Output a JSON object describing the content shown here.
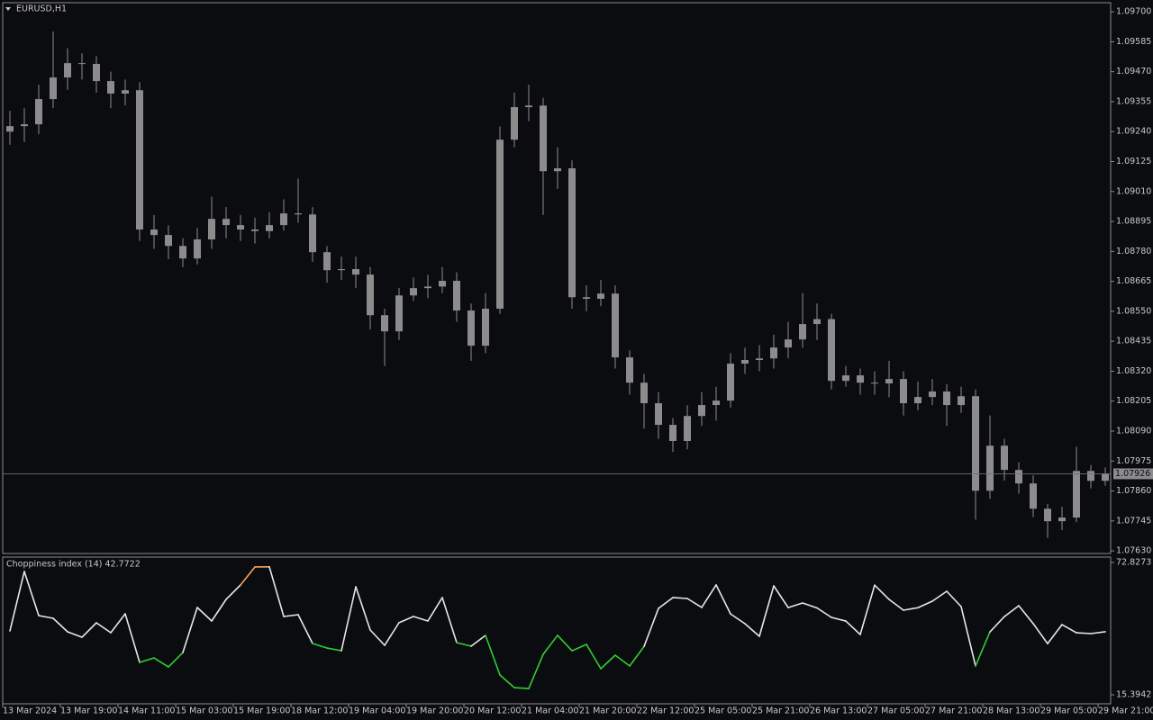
{
  "chart_data": [
    {
      "type": "candlestick",
      "title": "EURUSD,H1",
      "color": "#8c8c8c",
      "background": "#0b0c10",
      "categories": [
        "13 Mar 2024",
        null,
        null,
        null,
        "13 Mar 19:00",
        null,
        null,
        null,
        "14 Mar 11:00",
        null,
        null,
        null,
        "15 Mar 03:00",
        null,
        null,
        null,
        "15 Mar 19:00",
        null,
        null,
        null,
        "18 Mar 12:00",
        null,
        null,
        null,
        "19 Mar 04:00",
        null,
        null,
        null,
        "19 Mar 20:00",
        null,
        null,
        null,
        "20 Mar 12:00",
        null,
        null,
        null,
        "21 Mar 04:00",
        null,
        null,
        null,
        "21 Mar 20:00",
        null,
        null,
        null,
        "22 Mar 12:00",
        null,
        null,
        null,
        "25 Mar 05:00",
        null,
        null,
        null,
        "25 Mar 21:00",
        null,
        null,
        null,
        "26 Mar 13:00",
        null,
        null,
        null,
        "27 Mar 05:00",
        null,
        null,
        null,
        "27 Mar 21:00",
        null,
        null,
        null,
        "28 Mar 13:00",
        null,
        null,
        null,
        "29 Mar 05:00",
        null,
        null,
        null,
        "29 Mar 21:00"
      ],
      "open": [
        1.0924,
        1.09261,
        1.09268,
        1.09365,
        1.09448,
        1.09503,
        1.095,
        1.09434,
        1.09386,
        1.09399,
        1.08864,
        1.08843,
        1.08801,
        1.08753,
        1.08826,
        1.08905,
        1.08881,
        1.08864,
        1.08858,
        1.08881,
        1.08926,
        1.08922,
        1.08777,
        1.08708,
        1.08712,
        1.08691,
        1.08535,
        1.08473,
        1.08611,
        1.08639,
        1.08645,
        1.08667,
        1.08553,
        1.08418,
        1.0856,
        1.09209,
        1.09334,
        1.0934,
        1.09088,
        1.09099,
        1.08604,
        1.08598,
        1.08618,
        1.08373,
        1.08276,
        1.08197,
        1.08114,
        1.08052,
        1.08148,
        1.0819,
        1.08207,
        1.08349,
        1.08363,
        1.08369,
        1.08411,
        1.08442,
        1.08501,
        1.0852,
        1.08283,
        1.08304,
        1.08276,
        1.08273,
        1.0829,
        1.08197,
        1.08221,
        1.08242,
        1.0819,
        1.08224,
        1.07861,
        1.08034,
        1.07941,
        1.07889,
        1.07792,
        1.07744,
        1.07758,
        1.07937,
        1.07899
      ],
      "high": [
        1.0932,
        1.0933,
        1.0942,
        1.09624,
        1.0956,
        1.0954,
        1.0953,
        1.0947,
        1.0944,
        1.0943,
        1.0892,
        1.0888,
        1.0883,
        1.0887,
        1.0899,
        1.0895,
        1.0892,
        1.0891,
        1.0893,
        1.0898,
        1.0906,
        1.0895,
        1.088,
        1.0876,
        1.0876,
        1.0872,
        1.0856,
        1.0864,
        1.0868,
        1.0869,
        1.0872,
        1.087,
        1.0858,
        1.0862,
        1.0926,
        1.0939,
        1.0942,
        1.0937,
        1.0918,
        1.0913,
        1.0865,
        1.0867,
        1.0865,
        1.084,
        1.0831,
        1.0824,
        1.0814,
        1.0819,
        1.0824,
        1.0826,
        1.0839,
        1.0841,
        1.0842,
        1.0846,
        1.0851,
        1.0862,
        1.0858,
        1.0854,
        1.0834,
        1.0833,
        1.0832,
        1.0836,
        1.0832,
        1.0828,
        1.0829,
        1.0827,
        1.0826,
        1.0825,
        1.0815,
        1.0806,
        1.0797,
        1.0792,
        1.0781,
        1.078,
        1.0803,
        1.0796,
        1.0795
      ],
      "low": [
        1.0919,
        1.092,
        1.0923,
        1.0933,
        1.094,
        1.0944,
        1.0939,
        1.0933,
        1.0934,
        1.0882,
        1.0879,
        1.0875,
        1.0872,
        1.0873,
        1.0879,
        1.0883,
        1.0882,
        1.0881,
        1.0883,
        1.0886,
        1.0889,
        1.0874,
        1.0866,
        1.0867,
        1.0864,
        1.0848,
        1.0834,
        1.0844,
        1.0859,
        1.086,
        1.0862,
        1.0851,
        1.0836,
        1.0839,
        1.0854,
        1.0918,
        1.0928,
        1.0892,
        1.0902,
        1.0856,
        1.0855,
        1.0857,
        1.0833,
        1.0823,
        1.081,
        1.0806,
        1.0801,
        1.0802,
        1.0811,
        1.0813,
        1.0818,
        1.0831,
        1.0832,
        1.0833,
        1.0837,
        1.0841,
        1.0844,
        1.0825,
        1.0826,
        1.0823,
        1.0823,
        1.0822,
        1.0815,
        1.0817,
        1.0819,
        1.0811,
        1.0816,
        1.0775,
        1.0783,
        1.079,
        1.0785,
        1.0776,
        1.0768,
        1.0771,
        1.0774,
        1.0787,
        1.0788
      ],
      "close": [
        1.09261,
        1.09268,
        1.09365,
        1.09448,
        1.09503,
        1.095,
        1.09434,
        1.09386,
        1.09399,
        1.08864,
        1.08843,
        1.08801,
        1.08753,
        1.08826,
        1.08905,
        1.08881,
        1.08864,
        1.08858,
        1.08881,
        1.08926,
        1.08922,
        1.08777,
        1.08708,
        1.08712,
        1.08691,
        1.08535,
        1.08473,
        1.08611,
        1.08639,
        1.08645,
        1.08667,
        1.08553,
        1.08418,
        1.0856,
        1.09209,
        1.09334,
        1.0934,
        1.09088,
        1.09099,
        1.08604,
        1.08598,
        1.08618,
        1.08373,
        1.08276,
        1.08197,
        1.08114,
        1.08052,
        1.08148,
        1.0819,
        1.08207,
        1.08349,
        1.08363,
        1.08369,
        1.08411,
        1.08442,
        1.08501,
        1.0852,
        1.08283,
        1.08304,
        1.08276,
        1.08273,
        1.0829,
        1.08197,
        1.08221,
        1.08242,
        1.0819,
        1.08224,
        1.07861,
        1.08034,
        1.07941,
        1.07889,
        1.07792,
        1.07744,
        1.07758,
        1.07937,
        1.07899,
        1.07926
      ],
      "last_price": 1.07926,
      "ylim": [
        1.0762,
        1.09735
      ],
      "yticks": [
        {
          "value": 1.097,
          "label": "1.09700"
        },
        {
          "value": 1.09585,
          "label": "1.09585"
        },
        {
          "value": 1.0947,
          "label": "1.09470"
        },
        {
          "value": 1.09355,
          "label": "1.09355"
        },
        {
          "value": 1.0924,
          "label": "1.09240"
        },
        {
          "value": 1.09125,
          "label": "1.09125"
        },
        {
          "value": 1.0901,
          "label": "1.09010"
        },
        {
          "value": 1.08895,
          "label": "1.08895"
        },
        {
          "value": 1.0878,
          "label": "1.08780"
        },
        {
          "value": 1.08665,
          "label": "1.08665"
        },
        {
          "value": 1.0855,
          "label": "1.08550"
        },
        {
          "value": 1.08435,
          "label": "1.08435"
        },
        {
          "value": 1.0832,
          "label": "1.08320"
        },
        {
          "value": 1.08205,
          "label": "1.08205"
        },
        {
          "value": 1.0809,
          "label": "1.08090"
        },
        {
          "value": 1.07975,
          "label": "1.07975"
        },
        {
          "value": 1.0786,
          "label": "1.07860"
        },
        {
          "value": 1.07745,
          "label": "1.07745"
        },
        {
          "value": 1.0763,
          "label": "1.07630"
        }
      ]
    },
    {
      "type": "line",
      "title": "Choppiness index (14) 42.7722",
      "color": "#e6e6e6",
      "low_color": "#33cc33",
      "high_color": "#f4a460",
      "low_level": 38.2,
      "high_level": 61.8,
      "values": [
        43.13,
        68.92,
        49.77,
        48.6,
        42.74,
        40.39,
        46.65,
        42.35,
        50.55,
        29.45,
        31.41,
        27.5,
        33.75,
        53.29,
        47.43,
        56.81,
        63.06,
        70.88,
        70.95,
        49.38,
        50.16,
        37.66,
        35.7,
        34.53,
        62.28,
        43.52,
        36.88,
        46.7,
        49.4,
        47.45,
        57.59,
        38.05,
        36.49,
        41.18,
        23.98,
        18.51,
        18.12,
        32.97,
        41.2,
        34.5,
        37.27,
        26.72,
        32.58,
        27.89,
        36.4,
        52.9,
        57.6,
        57.2,
        53.3,
        63.1,
        50.5,
        46.26,
        40.78,
        62.67,
        53.25,
        55.24,
        53.1,
        48.99,
        47.4,
        41.57,
        63.0,
        56.8,
        52.12,
        53.2,
        56.03,
        60.32,
        53.68,
        27.9,
        42.7,
        49.35,
        54.07,
        46.3,
        37.6,
        45.86,
        42.33,
        41.96,
        42.7722
      ],
      "ylim": [
        11.49,
        75.17
      ],
      "yticks": [
        72.8273,
        15.3942
      ]
    }
  ]
}
